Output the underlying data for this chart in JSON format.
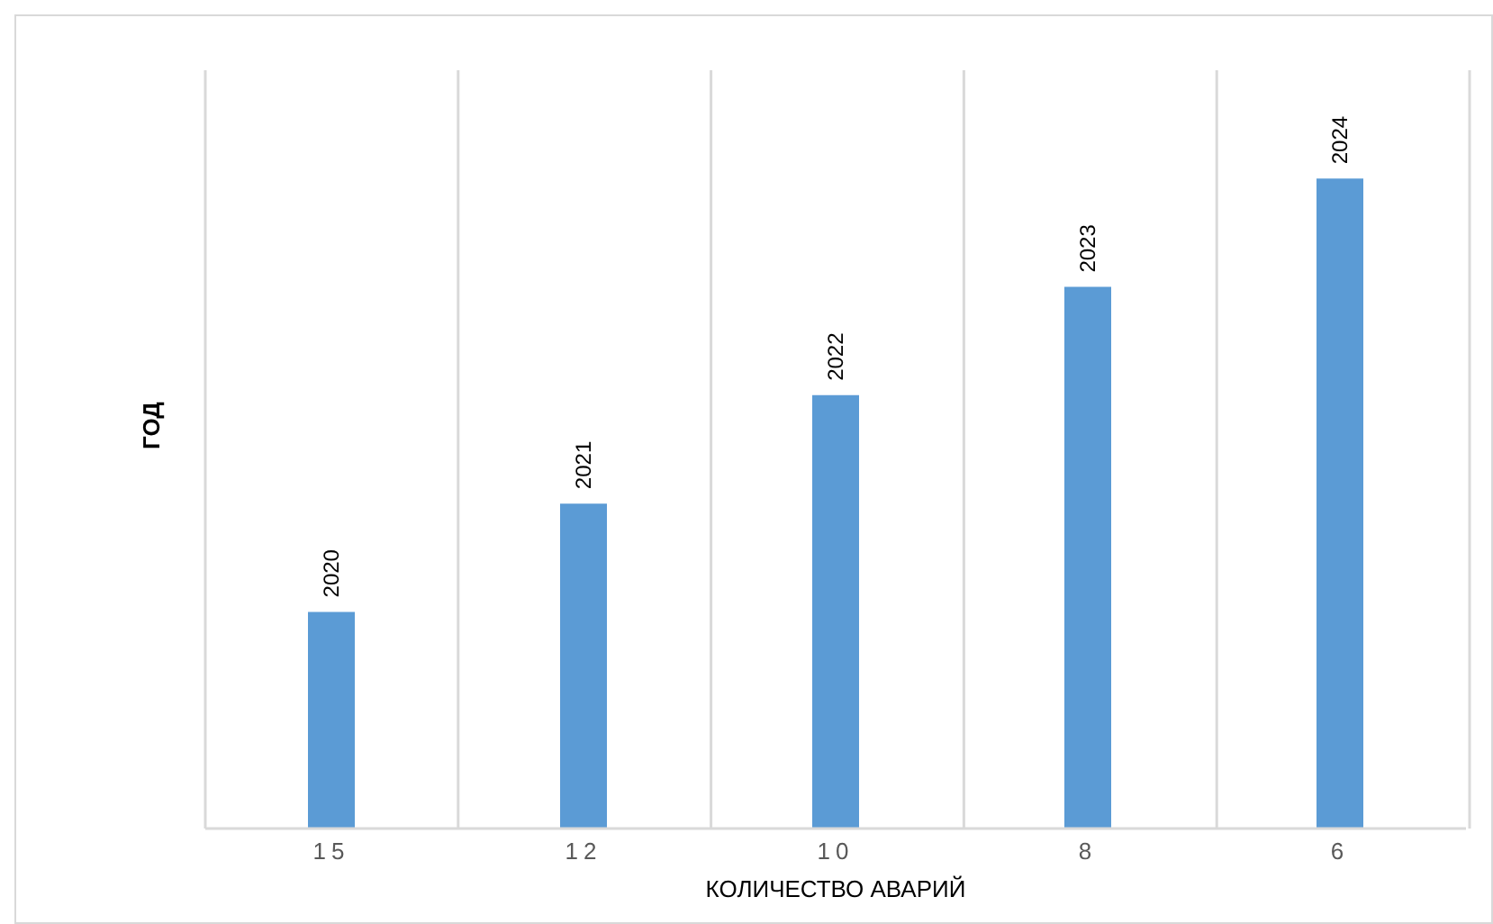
{
  "chart_data": {
    "type": "bar",
    "xlabel": "КОЛИЧЕСТВО АВАРИЙ",
    "ylabel": "ГОД",
    "categories": [
      "15",
      "12",
      "10",
      "8",
      "6"
    ],
    "values": [
      2020,
      2021,
      2022,
      2023,
      2024
    ],
    "color": "#5b9bd5",
    "ylim": [
      2018,
      2025
    ],
    "data_labels": true,
    "grid": "x",
    "tick_labels": "x"
  }
}
